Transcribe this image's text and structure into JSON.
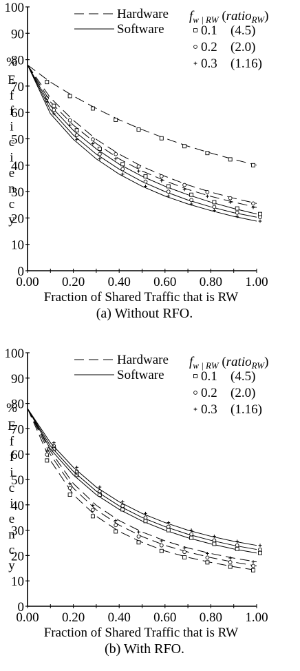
{
  "chart_data": [
    {
      "type": "line",
      "caption": "(a) Without RFO.",
      "xlabel": "Fraction of Shared Traffic that is RW",
      "ylabel_percent": "%",
      "ylabel": "Efficiency",
      "xlim": [
        0.0,
        1.0
      ],
      "ylim": [
        0,
        100
      ],
      "x_ticks": [
        "0.00",
        "0.20",
        "0.40",
        "0.60",
        "0.80",
        "1.00"
      ],
      "y_ticks": [
        "0",
        "10",
        "20",
        "30",
        "40",
        "50",
        "60",
        "70",
        "80",
        "90",
        "100"
      ],
      "x": [
        0.0,
        0.1,
        0.2,
        0.3,
        0.4,
        0.5,
        0.6,
        0.7,
        0.8,
        0.9,
        1.0
      ],
      "legend": {
        "style_entries": [
          "Hardware",
          "Software"
        ],
        "header_var": "f",
        "header_sub": "w | RW",
        "header_open": " (",
        "header_ratio": "ratio",
        "header_ratio_sub": "RW",
        "header_close": ")",
        "entries": [
          {
            "f": "0.1",
            "ratio": "(4.5)"
          },
          {
            "f": "0.2",
            "ratio": "(2.0)"
          },
          {
            "f": "0.3",
            "ratio": "(1.16)"
          }
        ]
      },
      "series": [
        {
          "style": "hardware",
          "marker": "square",
          "values": [
            78,
            71.5,
            66.2,
            61.5,
            57.2,
            53.5,
            50.2,
            47.2,
            44.6,
            42.2,
            40.0
          ]
        },
        {
          "style": "hardware",
          "marker": "circle",
          "values": [
            78,
            65.5,
            57.0,
            49.8,
            44.2,
            39.5,
            35.8,
            32.5,
            29.8,
            27.5,
            25.5
          ]
        },
        {
          "style": "hardware",
          "marker": "plus",
          "values": [
            78,
            64.0,
            55.2,
            48.2,
            42.4,
            37.8,
            34.1,
            30.8,
            28.2,
            26.0,
            24.0
          ]
        },
        {
          "style": "software",
          "marker": "square",
          "values": [
            78,
            62.5,
            53.2,
            46.2,
            40.4,
            35.8,
            32.0,
            28.8,
            26.0,
            23.6,
            21.5
          ]
        },
        {
          "style": "software",
          "marker": "circle",
          "values": [
            78,
            61.0,
            51.4,
            44.2,
            38.5,
            33.8,
            30.0,
            26.8,
            24.2,
            22.0,
            20.3
          ]
        },
        {
          "style": "software",
          "marker": "plus",
          "values": [
            78,
            59.5,
            49.8,
            42.4,
            36.6,
            32.0,
            28.3,
            25.3,
            22.8,
            20.6,
            18.8
          ]
        }
      ]
    },
    {
      "type": "line",
      "caption": "(b) With RFO.",
      "xlabel": "Fraction of Shared Traffic that is RW",
      "ylabel_percent": "%",
      "ylabel": "Efficiency",
      "xlim": [
        0.0,
        1.0
      ],
      "ylim": [
        0,
        100
      ],
      "x_ticks": [
        "0.00",
        "0.20",
        "0.40",
        "0.60",
        "0.80",
        "1.00"
      ],
      "y_ticks": [
        "0",
        "10",
        "20",
        "30",
        "40",
        "50",
        "60",
        "70",
        "80",
        "90",
        "100"
      ],
      "x": [
        0.0,
        0.1,
        0.2,
        0.3,
        0.4,
        0.5,
        0.6,
        0.7,
        0.8,
        0.9,
        1.0
      ],
      "legend": {
        "style_entries": [
          "Hardware",
          "Software"
        ],
        "header_var": "f",
        "header_sub": "w | RW",
        "header_open": " (",
        "header_ratio": "ratio",
        "header_ratio_sub": "RW",
        "header_close": ")",
        "entries": [
          {
            "f": "0.1",
            "ratio": "(4.5)"
          },
          {
            "f": "0.2",
            "ratio": "(2.0)"
          },
          {
            "f": "0.3",
            "ratio": "(1.16)"
          }
        ]
      },
      "series": [
        {
          "style": "hardware",
          "marker": "square",
          "values": [
            78,
            57.5,
            44.0,
            35.5,
            29.5,
            25.2,
            21.8,
            19.3,
            17.3,
            15.6,
            14.2
          ]
        },
        {
          "style": "hardware",
          "marker": "circle",
          "values": [
            78,
            59.8,
            46.6,
            38.0,
            32.0,
            27.5,
            24.0,
            21.4,
            19.2,
            17.4,
            15.9
          ]
        },
        {
          "style": "hardware",
          "marker": "plus",
          "values": [
            78,
            61.2,
            48.4,
            39.8,
            33.8,
            29.3,
            25.8,
            23.0,
            20.8,
            19.0,
            17.5
          ]
        },
        {
          "style": "software",
          "marker": "square",
          "values": [
            78,
            62.0,
            51.8,
            44.0,
            38.2,
            33.6,
            30.0,
            27.0,
            24.6,
            22.6,
            21.0
          ]
        },
        {
          "style": "software",
          "marker": "circle",
          "values": [
            78,
            63.2,
            53.2,
            45.4,
            39.6,
            35.0,
            31.4,
            28.4,
            26.0,
            24.0,
            22.4
          ]
        },
        {
          "style": "software",
          "marker": "plus",
          "values": [
            78,
            64.5,
            54.8,
            47.0,
            41.2,
            36.6,
            33.0,
            30.0,
            27.6,
            25.6,
            24.0
          ]
        }
      ]
    }
  ]
}
